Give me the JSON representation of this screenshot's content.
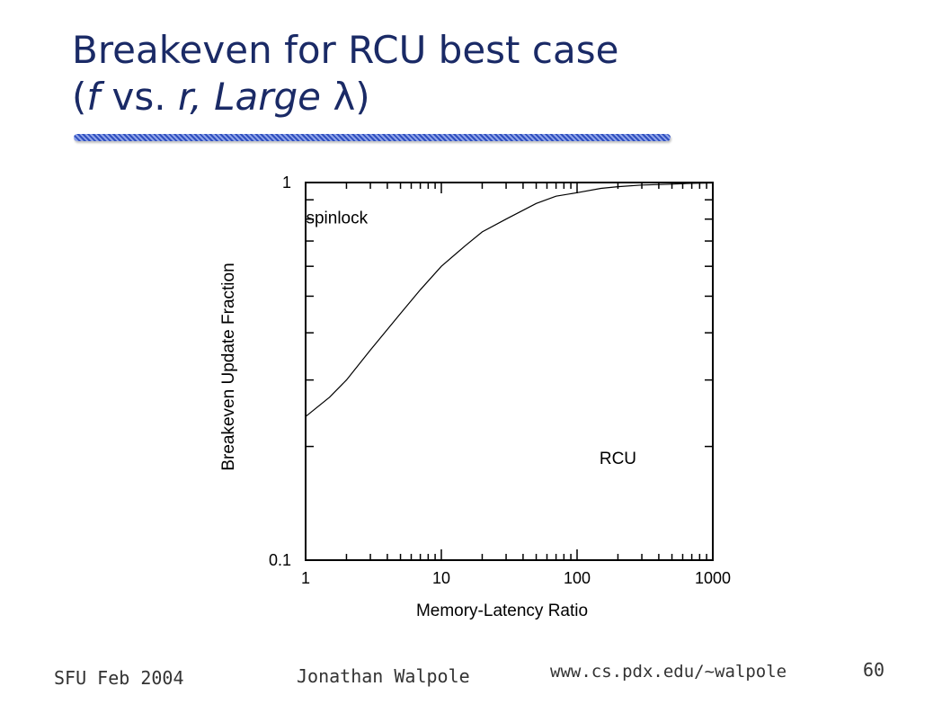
{
  "slide": {
    "title_line1": "Breakeven for RCU best case",
    "title_line2_open": "(",
    "title_line2_f": "f",
    "title_line2_mid": " vs. ",
    "title_line2_rest": "r, Large ",
    "title_line2_lambda": "λ",
    "title_line2_close": ")"
  },
  "footer": {
    "date": "SFU Feb 2004",
    "author": "Jonathan Walpole",
    "url": "www.cs.pdx.edu/~walpole",
    "page": "60"
  },
  "chart_data": {
    "type": "line",
    "title": "",
    "xlabel": "Memory-Latency Ratio",
    "ylabel": "Breakeven Update Fraction",
    "xscale": "log",
    "yscale": "log",
    "xlim": [
      1,
      1000
    ],
    "ylim": [
      0.1,
      1
    ],
    "xticks": [
      "1",
      "10",
      "100",
      "1000"
    ],
    "yticks": [
      "0.1",
      "1"
    ],
    "grid": false,
    "series": [
      {
        "x": [
          1,
          1.5,
          2,
          3,
          5,
          7,
          10,
          15,
          20,
          30,
          50,
          70,
          100,
          150,
          200,
          300,
          500,
          700,
          1000
        ],
        "y": [
          0.24,
          0.27,
          0.3,
          0.36,
          0.45,
          0.52,
          0.6,
          0.68,
          0.74,
          0.8,
          0.88,
          0.92,
          0.94,
          0.965,
          0.975,
          0.985,
          0.99,
          0.995,
          0.997
        ]
      }
    ],
    "annotations": [
      {
        "text": "spinlock",
        "x": 1.7,
        "y": 0.78
      },
      {
        "text": "RCU",
        "x": 200,
        "y": 0.18
      }
    ]
  }
}
